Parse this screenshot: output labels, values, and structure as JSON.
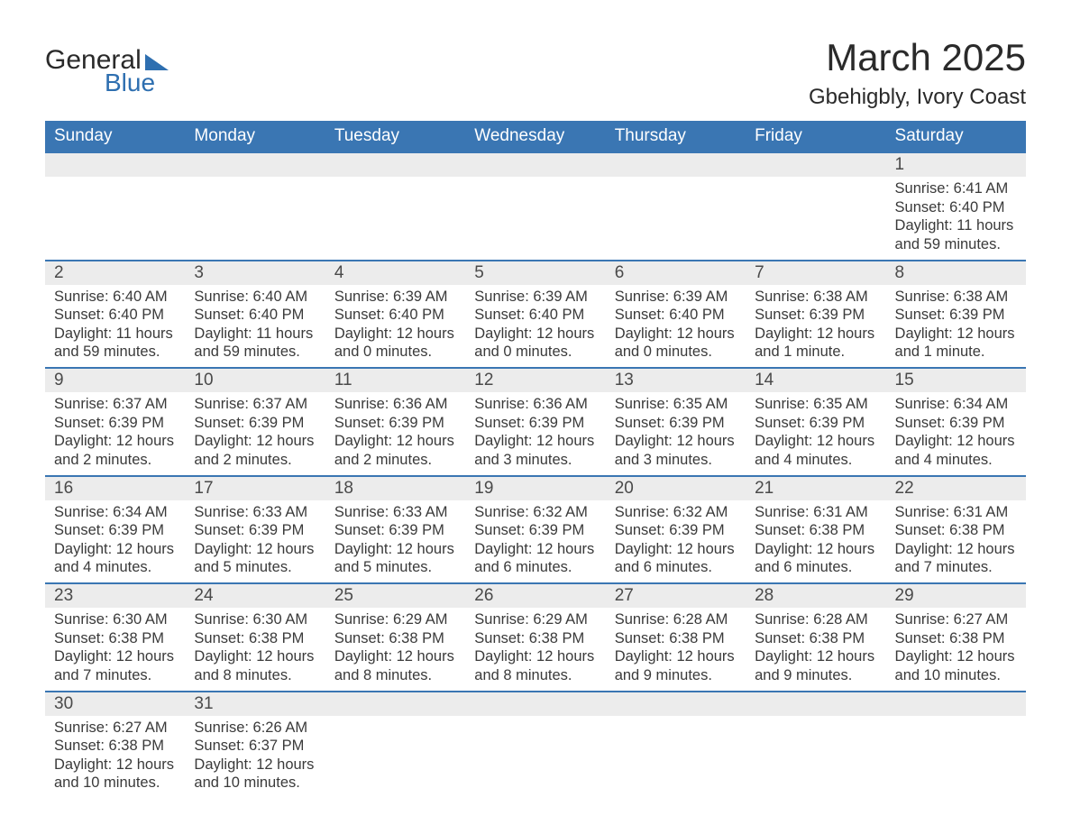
{
  "logo": {
    "text1": "General",
    "text2": "Blue"
  },
  "title": "March 2025",
  "location": "Gbehigbly, Ivory Coast",
  "colors": {
    "header_bg": "#3a76b3",
    "header_text": "#ffffff",
    "daynum_bg": "#ececec",
    "row_border": "#3a76b3",
    "body_text": "#3a3a3a",
    "logo_blue": "#2e6fb0"
  },
  "weekdays": [
    "Sunday",
    "Monday",
    "Tuesday",
    "Wednesday",
    "Thursday",
    "Friday",
    "Saturday"
  ],
  "weeks": [
    [
      null,
      null,
      null,
      null,
      null,
      null,
      {
        "n": "1",
        "sr": "Sunrise: 6:41 AM",
        "ss": "Sunset: 6:40 PM",
        "d1": "Daylight: 11 hours",
        "d2": "and 59 minutes."
      }
    ],
    [
      {
        "n": "2",
        "sr": "Sunrise: 6:40 AM",
        "ss": "Sunset: 6:40 PM",
        "d1": "Daylight: 11 hours",
        "d2": "and 59 minutes."
      },
      {
        "n": "3",
        "sr": "Sunrise: 6:40 AM",
        "ss": "Sunset: 6:40 PM",
        "d1": "Daylight: 11 hours",
        "d2": "and 59 minutes."
      },
      {
        "n": "4",
        "sr": "Sunrise: 6:39 AM",
        "ss": "Sunset: 6:40 PM",
        "d1": "Daylight: 12 hours",
        "d2": "and 0 minutes."
      },
      {
        "n": "5",
        "sr": "Sunrise: 6:39 AM",
        "ss": "Sunset: 6:40 PM",
        "d1": "Daylight: 12 hours",
        "d2": "and 0 minutes."
      },
      {
        "n": "6",
        "sr": "Sunrise: 6:39 AM",
        "ss": "Sunset: 6:40 PM",
        "d1": "Daylight: 12 hours",
        "d2": "and 0 minutes."
      },
      {
        "n": "7",
        "sr": "Sunrise: 6:38 AM",
        "ss": "Sunset: 6:39 PM",
        "d1": "Daylight: 12 hours",
        "d2": "and 1 minute."
      },
      {
        "n": "8",
        "sr": "Sunrise: 6:38 AM",
        "ss": "Sunset: 6:39 PM",
        "d1": "Daylight: 12 hours",
        "d2": "and 1 minute."
      }
    ],
    [
      {
        "n": "9",
        "sr": "Sunrise: 6:37 AM",
        "ss": "Sunset: 6:39 PM",
        "d1": "Daylight: 12 hours",
        "d2": "and 2 minutes."
      },
      {
        "n": "10",
        "sr": "Sunrise: 6:37 AM",
        "ss": "Sunset: 6:39 PM",
        "d1": "Daylight: 12 hours",
        "d2": "and 2 minutes."
      },
      {
        "n": "11",
        "sr": "Sunrise: 6:36 AM",
        "ss": "Sunset: 6:39 PM",
        "d1": "Daylight: 12 hours",
        "d2": "and 2 minutes."
      },
      {
        "n": "12",
        "sr": "Sunrise: 6:36 AM",
        "ss": "Sunset: 6:39 PM",
        "d1": "Daylight: 12 hours",
        "d2": "and 3 minutes."
      },
      {
        "n": "13",
        "sr": "Sunrise: 6:35 AM",
        "ss": "Sunset: 6:39 PM",
        "d1": "Daylight: 12 hours",
        "d2": "and 3 minutes."
      },
      {
        "n": "14",
        "sr": "Sunrise: 6:35 AM",
        "ss": "Sunset: 6:39 PM",
        "d1": "Daylight: 12 hours",
        "d2": "and 4 minutes."
      },
      {
        "n": "15",
        "sr": "Sunrise: 6:34 AM",
        "ss": "Sunset: 6:39 PM",
        "d1": "Daylight: 12 hours",
        "d2": "and 4 minutes."
      }
    ],
    [
      {
        "n": "16",
        "sr": "Sunrise: 6:34 AM",
        "ss": "Sunset: 6:39 PM",
        "d1": "Daylight: 12 hours",
        "d2": "and 4 minutes."
      },
      {
        "n": "17",
        "sr": "Sunrise: 6:33 AM",
        "ss": "Sunset: 6:39 PM",
        "d1": "Daylight: 12 hours",
        "d2": "and 5 minutes."
      },
      {
        "n": "18",
        "sr": "Sunrise: 6:33 AM",
        "ss": "Sunset: 6:39 PM",
        "d1": "Daylight: 12 hours",
        "d2": "and 5 minutes."
      },
      {
        "n": "19",
        "sr": "Sunrise: 6:32 AM",
        "ss": "Sunset: 6:39 PM",
        "d1": "Daylight: 12 hours",
        "d2": "and 6 minutes."
      },
      {
        "n": "20",
        "sr": "Sunrise: 6:32 AM",
        "ss": "Sunset: 6:39 PM",
        "d1": "Daylight: 12 hours",
        "d2": "and 6 minutes."
      },
      {
        "n": "21",
        "sr": "Sunrise: 6:31 AM",
        "ss": "Sunset: 6:38 PM",
        "d1": "Daylight: 12 hours",
        "d2": "and 6 minutes."
      },
      {
        "n": "22",
        "sr": "Sunrise: 6:31 AM",
        "ss": "Sunset: 6:38 PM",
        "d1": "Daylight: 12 hours",
        "d2": "and 7 minutes."
      }
    ],
    [
      {
        "n": "23",
        "sr": "Sunrise: 6:30 AM",
        "ss": "Sunset: 6:38 PM",
        "d1": "Daylight: 12 hours",
        "d2": "and 7 minutes."
      },
      {
        "n": "24",
        "sr": "Sunrise: 6:30 AM",
        "ss": "Sunset: 6:38 PM",
        "d1": "Daylight: 12 hours",
        "d2": "and 8 minutes."
      },
      {
        "n": "25",
        "sr": "Sunrise: 6:29 AM",
        "ss": "Sunset: 6:38 PM",
        "d1": "Daylight: 12 hours",
        "d2": "and 8 minutes."
      },
      {
        "n": "26",
        "sr": "Sunrise: 6:29 AM",
        "ss": "Sunset: 6:38 PM",
        "d1": "Daylight: 12 hours",
        "d2": "and 8 minutes."
      },
      {
        "n": "27",
        "sr": "Sunrise: 6:28 AM",
        "ss": "Sunset: 6:38 PM",
        "d1": "Daylight: 12 hours",
        "d2": "and 9 minutes."
      },
      {
        "n": "28",
        "sr": "Sunrise: 6:28 AM",
        "ss": "Sunset: 6:38 PM",
        "d1": "Daylight: 12 hours",
        "d2": "and 9 minutes."
      },
      {
        "n": "29",
        "sr": "Sunrise: 6:27 AM",
        "ss": "Sunset: 6:38 PM",
        "d1": "Daylight: 12 hours",
        "d2": "and 10 minutes."
      }
    ],
    [
      {
        "n": "30",
        "sr": "Sunrise: 6:27 AM",
        "ss": "Sunset: 6:38 PM",
        "d1": "Daylight: 12 hours",
        "d2": "and 10 minutes."
      },
      {
        "n": "31",
        "sr": "Sunrise: 6:26 AM",
        "ss": "Sunset: 6:37 PM",
        "d1": "Daylight: 12 hours",
        "d2": "and 10 minutes."
      },
      null,
      null,
      null,
      null,
      null
    ]
  ]
}
